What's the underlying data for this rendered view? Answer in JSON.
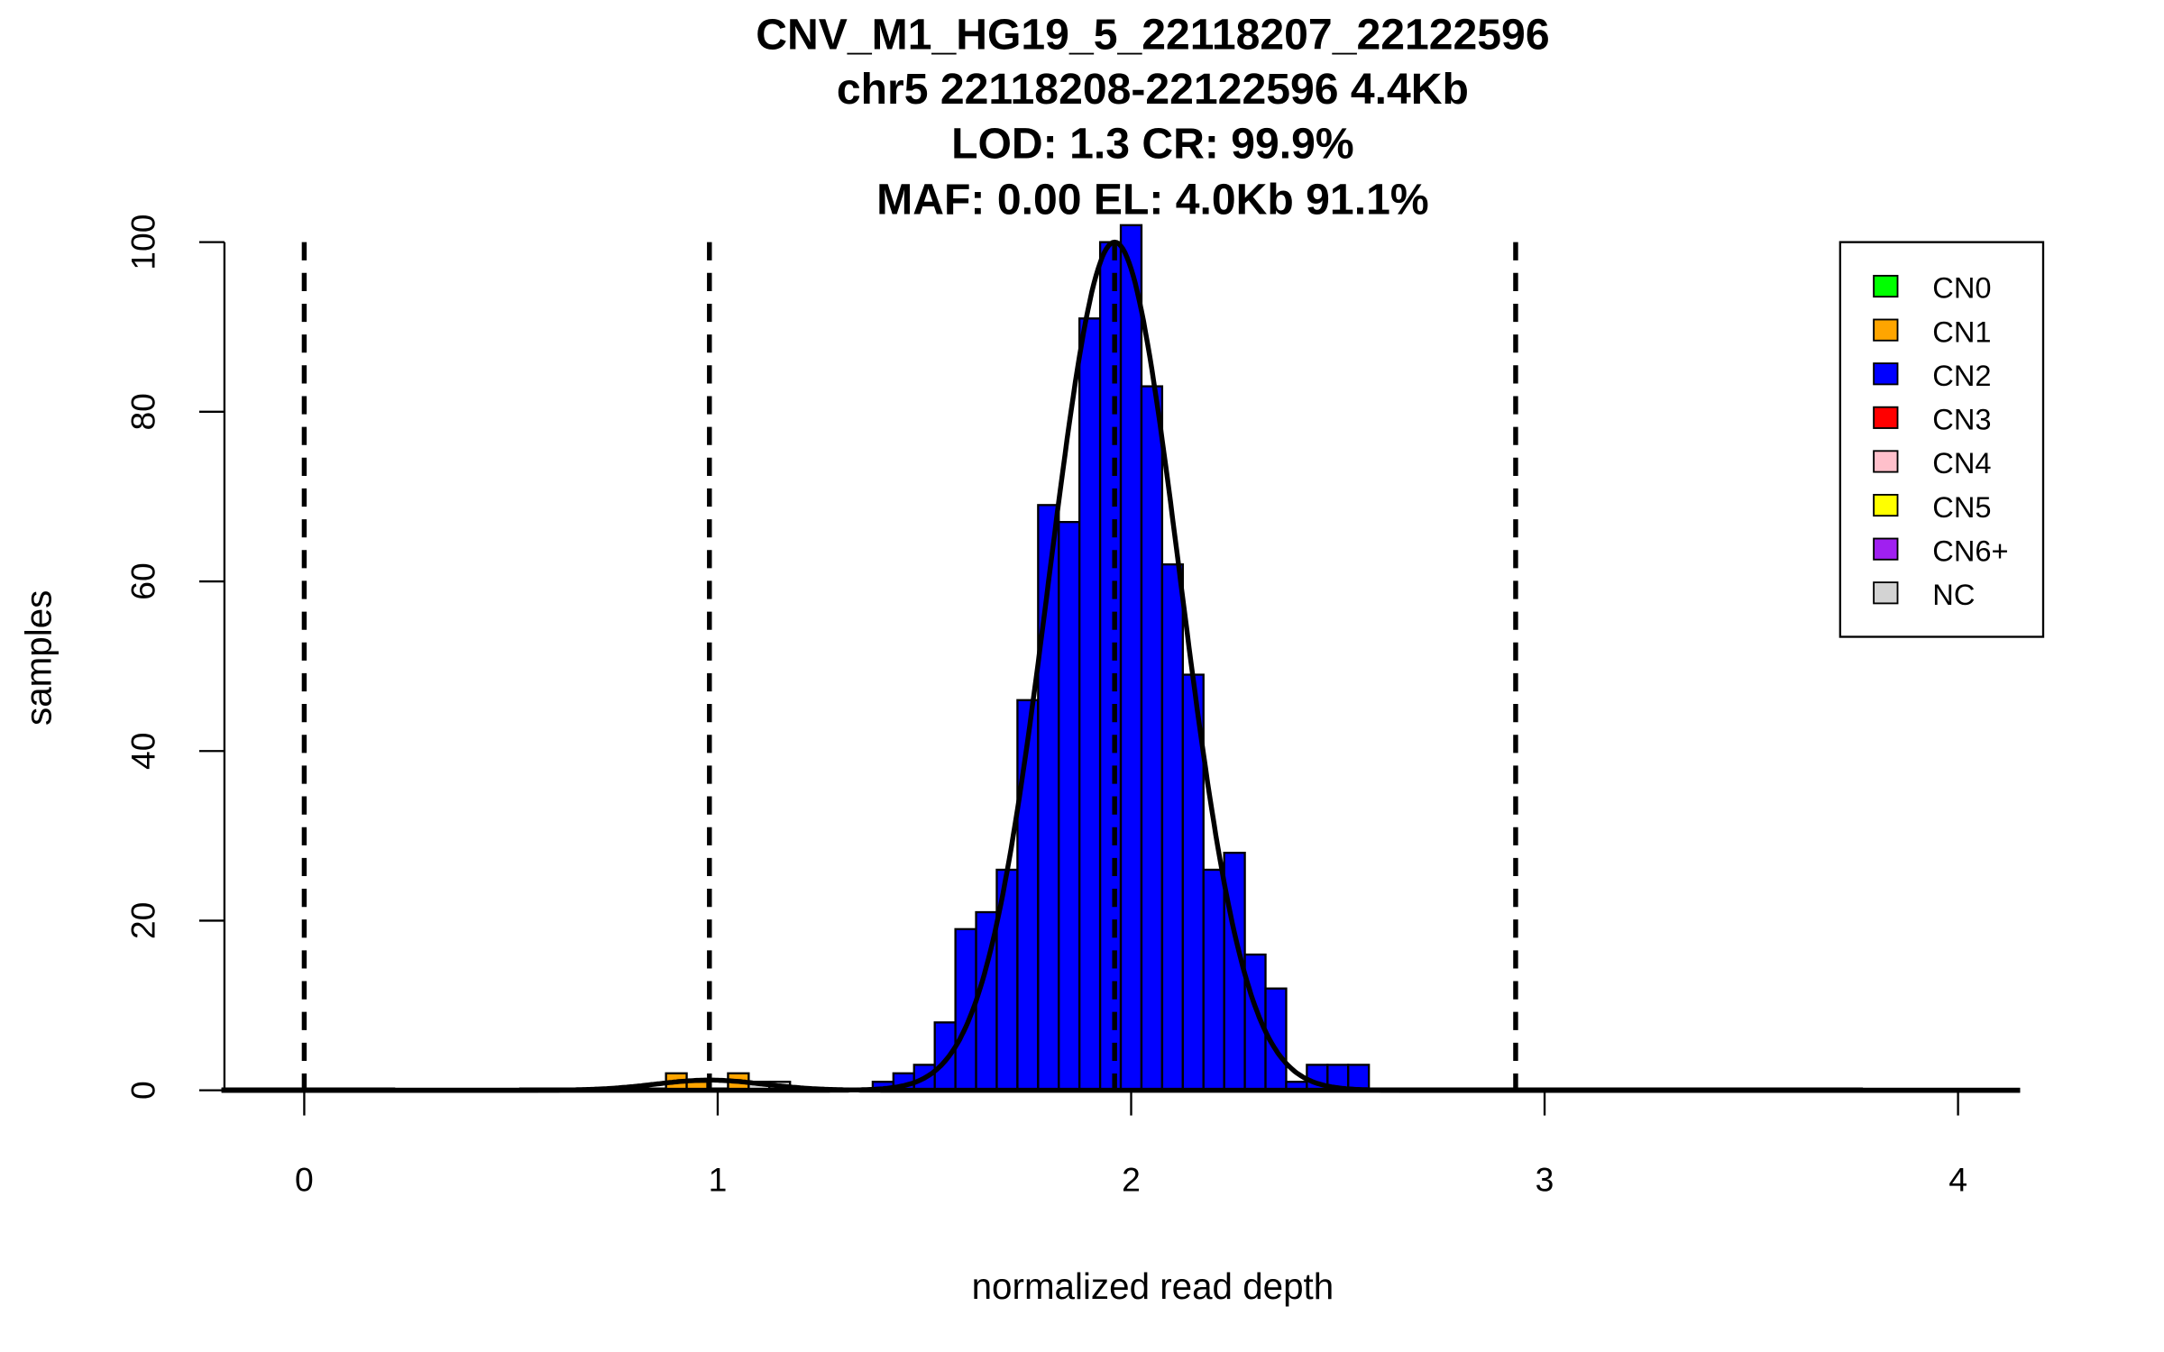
{
  "chart_data": {
    "type": "bar",
    "title_lines": [
      "CNV_M1_HG19_5_22118207_22122596",
      "chr5 22118208-22122596 4.4Kb",
      "LOD: 1.3 CR: 99.9%",
      "MAF: 0.00 EL: 4.0Kb 91.1%"
    ],
    "xlabel": "normalized read depth",
    "ylabel": "samples",
    "xlim": [
      -0.2,
      4.15
    ],
    "ylim": [
      0,
      100
    ],
    "xticks": [
      "0",
      "1",
      "2",
      "3",
      "4"
    ],
    "yticks": [
      "0",
      "20",
      "40",
      "60",
      "80",
      "100"
    ],
    "bin_width": 0.05,
    "series": [
      {
        "name": "CN1",
        "color": "#FFA500",
        "start": 0.875,
        "values": [
          2,
          1,
          0,
          2
        ]
      },
      {
        "name": "NC",
        "color": "#D3D3D3",
        "start": 1.075,
        "values": [
          1,
          1
        ]
      },
      {
        "name": "CN2",
        "color": "#0000FF",
        "start": 1.375,
        "values": [
          1,
          2,
          3,
          8,
          19,
          21,
          26,
          46,
          69,
          67,
          91,
          100,
          102,
          83,
          62,
          49,
          26,
          28,
          16,
          12,
          1,
          3,
          3,
          3
        ]
      }
    ],
    "fit_curves": [
      {
        "name": "CN1",
        "mean": 0.98,
        "sd": 0.13,
        "peak": 1.2
      },
      {
        "name": "CN2",
        "mean": 1.96,
        "sd": 0.158,
        "peak": 100
      }
    ],
    "dashed_lines": [
      0,
      0.98,
      1.96,
      2.93
    ],
    "legend": {
      "position": "top-right",
      "entries": [
        {
          "label": "CN0",
          "color": "#00FF00"
        },
        {
          "label": "CN1",
          "color": "#FFA500"
        },
        {
          "label": "CN2",
          "color": "#0000FF"
        },
        {
          "label": "CN3",
          "color": "#FF0000"
        },
        {
          "label": "CN4",
          "color": "#FFC0CB"
        },
        {
          "label": "CN5",
          "color": "#FFFF00"
        },
        {
          "label": "CN6+",
          "color": "#A020F0"
        },
        {
          "label": "NC",
          "color": "#D3D3D3"
        }
      ]
    }
  }
}
